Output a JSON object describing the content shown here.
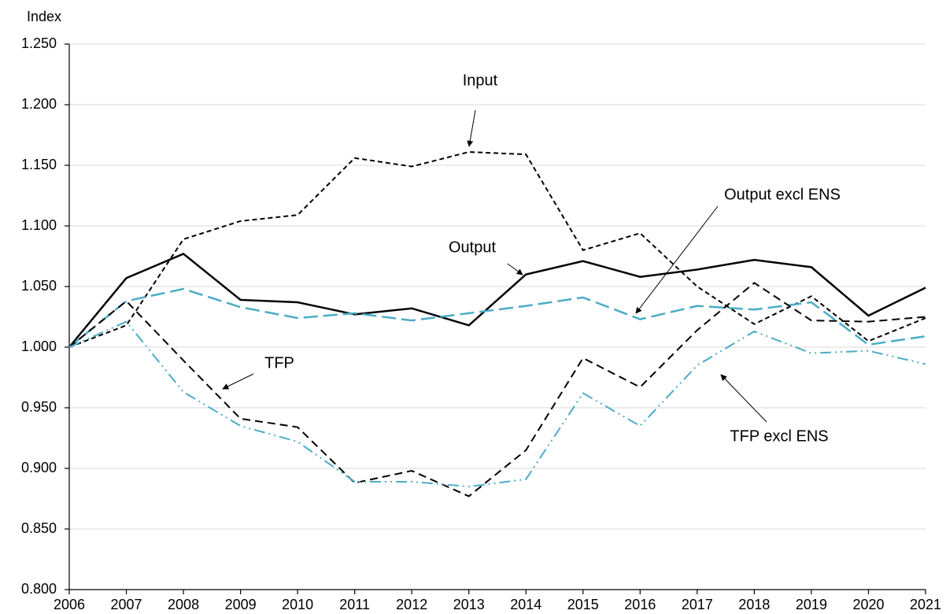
{
  "chart_data": {
    "type": "line",
    "y_axis_label": "Index",
    "x": [
      2006,
      2007,
      2008,
      2009,
      2010,
      2011,
      2012,
      2013,
      2014,
      2015,
      2016,
      2017,
      2018,
      2019,
      2020,
      2021
    ],
    "xlim": [
      2006,
      2021
    ],
    "xticks": [
      2006,
      2007,
      2008,
      2009,
      2010,
      2011,
      2012,
      2013,
      2014,
      2015,
      2016,
      2017,
      2018,
      2019,
      2020,
      2021
    ],
    "ylim": [
      0.8,
      1.25
    ],
    "yticks": [
      {
        "value": 0.8,
        "label": "0.800"
      },
      {
        "value": 0.85,
        "label": "0.850"
      },
      {
        "value": 0.9,
        "label": "0.900"
      },
      {
        "value": 0.95,
        "label": "0.950"
      },
      {
        "value": 1.0,
        "label": "1.000"
      },
      {
        "value": 1.05,
        "label": "1.050"
      },
      {
        "value": 1.1,
        "label": "1.100"
      },
      {
        "value": 1.15,
        "label": "1.150"
      },
      {
        "value": 1.2,
        "label": "1.200"
      },
      {
        "value": 1.25,
        "label": "1.250"
      }
    ],
    "grid": true,
    "series": [
      {
        "name": "Input",
        "color": "#000000",
        "values": [
          1.0,
          1.018,
          1.089,
          1.104,
          1.109,
          1.156,
          1.149,
          1.161,
          1.159,
          1.08,
          1.094,
          1.05,
          1.019,
          1.042,
          1.005,
          1.024
        ]
      },
      {
        "name": "Output",
        "color": "#000000",
        "values": [
          1.0,
          1.057,
          1.077,
          1.039,
          1.037,
          1.027,
          1.032,
          1.018,
          1.06,
          1.071,
          1.058,
          1.064,
          1.072,
          1.066,
          1.026,
          1.049
        ]
      },
      {
        "name": "Output excl ENS",
        "color": "#4bacc6",
        "values": [
          1.0,
          1.038,
          1.048,
          1.033,
          1.024,
          1.028,
          1.022,
          1.028,
          1.034,
          1.041,
          1.023,
          1.034,
          1.031,
          1.037,
          1.002,
          1.009
        ]
      },
      {
        "name": "TFP",
        "color": "#000000",
        "values": [
          1.0,
          1.038,
          0.989,
          0.941,
          0.934,
          0.888,
          0.898,
          0.877,
          0.915,
          0.991,
          0.967,
          1.014,
          1.053,
          1.022,
          1.021,
          1.025
        ]
      },
      {
        "name": "TFP excl ENS",
        "color": "#4bacc6",
        "values": [
          1.0,
          1.021,
          0.963,
          0.935,
          0.922,
          0.889,
          0.889,
          0.885,
          0.891,
          0.962,
          0.935,
          0.985,
          1.013,
          0.995,
          0.997,
          0.986
        ]
      }
    ]
  }
}
